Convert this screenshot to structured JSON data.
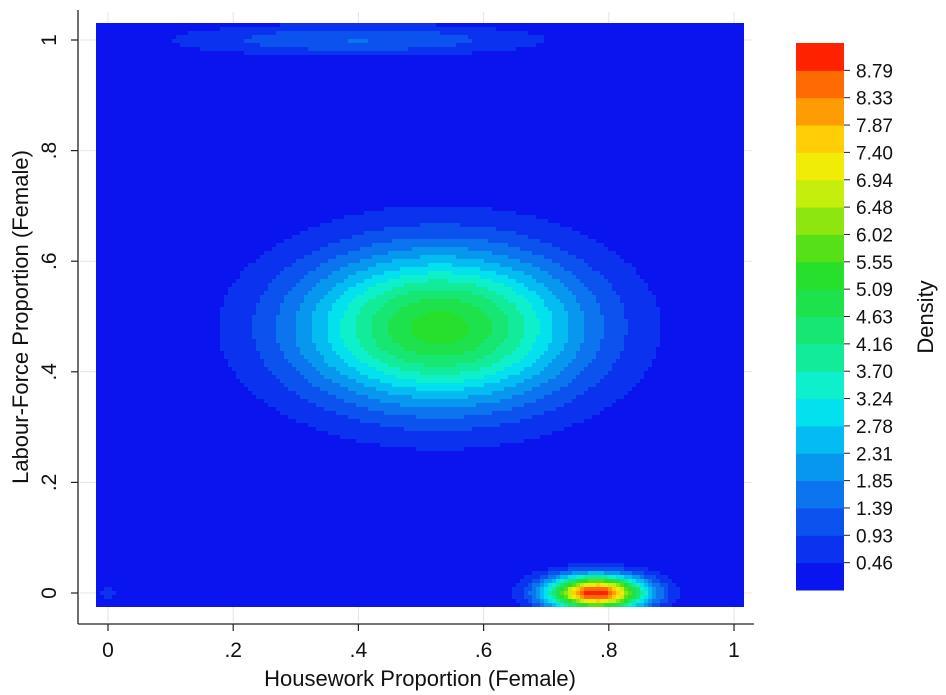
{
  "chart_data": {
    "type": "heatmap",
    "subtype": "contour-density",
    "xlabel": "Housework Proportion (Female)",
    "ylabel": "Labour-Force Proportion (Female)",
    "xlim": [
      -0.02,
      1.02
    ],
    "ylim": [
      -0.025,
      1.025
    ],
    "x_ticks": [
      {
        "value": 0,
        "label": "0"
      },
      {
        "value": 0.2,
        "label": ".2"
      },
      {
        "value": 0.4,
        "label": ".4"
      },
      {
        "value": 0.6,
        "label": ".6"
      },
      {
        "value": 0.8,
        "label": ".8"
      },
      {
        "value": 1,
        "label": "1"
      }
    ],
    "y_ticks": [
      {
        "value": 0,
        "label": "0"
      },
      {
        "value": 0.2,
        "label": ".2"
      },
      {
        "value": 0.4,
        "label": ".4"
      },
      {
        "value": 0.6,
        "label": ".6"
      },
      {
        "value": 0.8,
        "label": ".8"
      },
      {
        "value": 1,
        "label": "1"
      }
    ],
    "grid": true,
    "colorbar": {
      "label": "Density",
      "position": "right",
      "levels": [
        "0.46",
        "0.93",
        "1.39",
        "1.85",
        "2.31",
        "2.78",
        "3.24",
        "3.70",
        "4.16",
        "4.63",
        "5.09",
        "5.55",
        "6.02",
        "6.48",
        "6.94",
        "7.40",
        "7.87",
        "8.33",
        "8.79"
      ],
      "colors": [
        "#0a14ee",
        "#0b32ee",
        "#0c52ee",
        "#0b74ee",
        "#0897ee",
        "#05bcf2",
        "#04e1ee",
        "#0ef0cc",
        "#12ec9a",
        "#18e672",
        "#1ee24c",
        "#26e02c",
        "#55e018",
        "#8ee610",
        "#c6ee0c",
        "#f0ec08",
        "#ffce06",
        "#ff9c04",
        "#ff6a02",
        "#ff2200"
      ]
    },
    "density_peaks": [
      {
        "x": 0.53,
        "y": 0.48,
        "peak_density": 5.3,
        "sx": 0.16,
        "sy": 0.1
      },
      {
        "x": 0.78,
        "y": 0.0,
        "peak_density": 9.2,
        "sx": 0.055,
        "sy": 0.022
      },
      {
        "x": 0.4,
        "y": 1.0,
        "peak_density": 1.4,
        "sx": 0.2,
        "sy": 0.02
      },
      {
        "x": 0.0,
        "y": 0.0,
        "peak_density": 0.6,
        "sx": 0.015,
        "sy": 0.015
      }
    ]
  }
}
